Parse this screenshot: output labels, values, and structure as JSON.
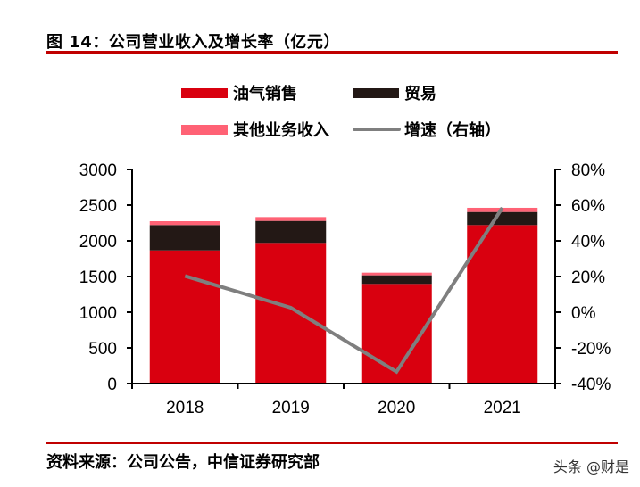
{
  "header": {
    "title": "图 14：公司营业收入及增长率（亿元）"
  },
  "footer": {
    "source": "资料来源：公司公告，中信证券研究部",
    "watermark": "头条 @财是"
  },
  "colors": {
    "oil_gas": "#d9000f",
    "trade": "#231815",
    "other": "#ff6275",
    "growth": "#7f7f7f",
    "rule": "#c00000"
  },
  "chart_data": {
    "type": "bar",
    "stacked": true,
    "title": "公司营业收入及增长率（亿元）",
    "categories": [
      "2018",
      "2019",
      "2020",
      "2021"
    ],
    "series": [
      {
        "name": "油气销售",
        "type": "bar",
        "axis": "left",
        "color": "#d9000f",
        "values": [
          1866,
          1971,
          1396,
          2221
        ]
      },
      {
        "name": "贸易",
        "type": "bar",
        "axis": "left",
        "color": "#231815",
        "values": [
          355,
          308,
          121,
          183
        ]
      },
      {
        "name": "其他业务收入",
        "type": "bar",
        "axis": "left",
        "color": "#ff6275",
        "values": [
          54,
          54,
          37,
          59
        ]
      },
      {
        "name": "增速（右轴）",
        "type": "line",
        "axis": "right",
        "color": "#7f7f7f",
        "values": [
          20.3,
          2.5,
          -33.4,
          58.5
        ]
      }
    ],
    "left_axis": {
      "min": 0,
      "max": 3000,
      "step": 500,
      "ticks": [
        "0",
        "500",
        "1000",
        "1500",
        "2000",
        "2500",
        "3000"
      ]
    },
    "right_axis": {
      "min": -40,
      "max": 80,
      "step": 20,
      "ticks": [
        "-40%",
        "-20%",
        "0%",
        "20%",
        "40%",
        "60%",
        "80%"
      ]
    },
    "xlabel": "",
    "ylabel": "",
    "legend_position": "top",
    "legend": [
      "油气销售",
      "贸易",
      "其他业务收入",
      "增速（右轴）"
    ],
    "grid": false
  }
}
